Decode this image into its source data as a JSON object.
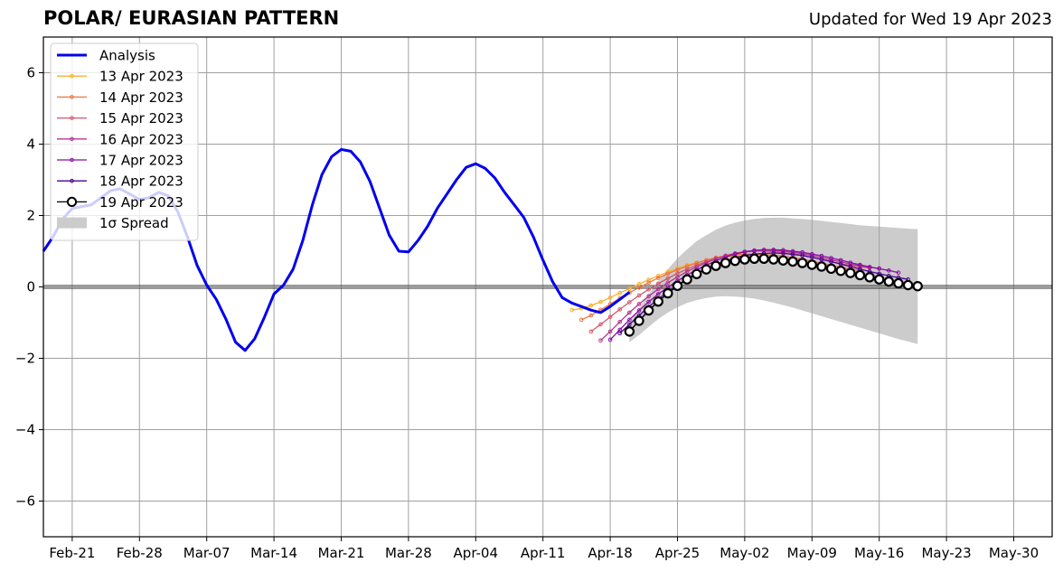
{
  "header": {
    "title": "POLAR/ EURASIAN  PATTERN",
    "updated": "Updated for Wed 19 Apr 2023"
  },
  "chart_data": {
    "type": "line",
    "title": "POLAR/ EURASIAN  PATTERN",
    "subtitle": "Updated for Wed 19 Apr 2023",
    "xlabel": "",
    "ylabel": "",
    "x_range": [
      "2023-02-18",
      "2023-06-03"
    ],
    "ylim": [
      -7,
      7
    ],
    "grid": true,
    "legend_position": "upper-left",
    "x_ticks": [
      {
        "date": "2023-02-21",
        "label": "Feb-21"
      },
      {
        "date": "2023-02-28",
        "label": "Feb-28"
      },
      {
        "date": "2023-03-07",
        "label": "Mar-07"
      },
      {
        "date": "2023-03-14",
        "label": "Mar-14"
      },
      {
        "date": "2023-03-21",
        "label": "Mar-21"
      },
      {
        "date": "2023-03-28",
        "label": "Mar-28"
      },
      {
        "date": "2023-04-04",
        "label": "Apr-04"
      },
      {
        "date": "2023-04-11",
        "label": "Apr-11"
      },
      {
        "date": "2023-04-18",
        "label": "Apr-18"
      },
      {
        "date": "2023-04-25",
        "label": "Apr-25"
      },
      {
        "date": "2023-05-02",
        "label": "May-02"
      },
      {
        "date": "2023-05-09",
        "label": "May-09"
      },
      {
        "date": "2023-05-16",
        "label": "May-16"
      },
      {
        "date": "2023-05-23",
        "label": "May-23"
      },
      {
        "date": "2023-05-30",
        "label": "May-30"
      }
    ],
    "y_ticks": [
      {
        "value": -6,
        "label": "−6"
      },
      {
        "value": -4,
        "label": "−4"
      },
      {
        "value": -2,
        "label": "−2"
      },
      {
        "value": 0,
        "label": "0"
      },
      {
        "value": 2,
        "label": "2"
      },
      {
        "value": 4,
        "label": "4"
      },
      {
        "value": 6,
        "label": "6"
      }
    ],
    "analysis": {
      "name": "Analysis",
      "color": "#0000ee",
      "start_date": "2023-02-18",
      "values": [
        1.0,
        1.4,
        1.9,
        2.2,
        2.25,
        2.3,
        2.5,
        2.7,
        2.75,
        2.6,
        2.45,
        2.5,
        2.65,
        2.55,
        2.1,
        1.4,
        0.6,
        0.05,
        -0.35,
        -0.9,
        -1.55,
        -1.78,
        -1.45,
        -0.85,
        -0.2,
        0.05,
        0.5,
        1.3,
        2.3,
        3.15,
        3.65,
        3.85,
        3.8,
        3.5,
        2.95,
        2.2,
        1.45,
        1.0,
        0.98,
        1.3,
        1.7,
        2.2,
        2.6,
        3.0,
        3.35,
        3.45,
        3.32,
        3.05,
        2.65,
        2.3,
        1.95,
        1.4,
        0.75,
        0.15,
        -0.3,
        -0.45,
        -0.55,
        -0.65,
        -0.72,
        -0.55,
        -0.35,
        -0.15
      ]
    },
    "forecasts": [
      {
        "name": "13 Apr 2023",
        "color": "#f9b02c",
        "start_date": "2023-04-14",
        "values": [
          -0.65,
          -0.6,
          -0.52,
          -0.42,
          -0.3,
          -0.17,
          -0.05,
          0.08,
          0.2,
          0.31,
          0.42,
          0.52,
          0.61,
          0.68,
          0.75,
          0.8,
          0.84,
          0.86,
          0.87,
          0.86,
          0.84,
          0.81,
          0.77,
          0.72,
          0.66,
          0.6,
          0.54,
          0.48,
          0.43,
          0.39
        ]
      },
      {
        "name": "14 Apr 2023",
        "color": "#ed7541",
        "start_date": "2023-04-15",
        "values": [
          -0.92,
          -0.8,
          -0.64,
          -0.48,
          -0.32,
          -0.16,
          -0.02,
          0.12,
          0.25,
          0.37,
          0.48,
          0.58,
          0.67,
          0.75,
          0.82,
          0.87,
          0.9,
          0.92,
          0.92,
          0.91,
          0.89,
          0.86,
          0.82,
          0.77,
          0.72,
          0.66,
          0.6,
          0.55,
          0.5,
          0.46
        ]
      },
      {
        "name": "15 Apr 2023",
        "color": "#d6566c",
        "start_date": "2023-04-16",
        "values": [
          -1.25,
          -1.05,
          -0.84,
          -0.63,
          -0.43,
          -0.24,
          -0.07,
          0.09,
          0.24,
          0.38,
          0.5,
          0.61,
          0.71,
          0.8,
          0.88,
          0.94,
          0.98,
          1.0,
          1.0,
          0.99,
          0.96,
          0.93,
          0.88,
          0.83,
          0.77,
          0.71,
          0.65,
          0.6,
          0.56,
          0.53
        ]
      },
      {
        "name": "16 Apr 2023",
        "color": "#b5348d",
        "start_date": "2023-04-17",
        "values": [
          -1.5,
          -1.25,
          -0.98,
          -0.72,
          -0.48,
          -0.26,
          -0.06,
          0.12,
          0.28,
          0.43,
          0.56,
          0.68,
          0.78,
          0.87,
          0.94,
          0.99,
          1.02,
          1.03,
          1.02,
          1.0,
          0.97,
          0.93,
          0.88,
          0.82,
          0.76,
          0.7,
          0.64,
          0.59,
          0.55,
          0.52
        ]
      },
      {
        "name": "17 Apr 2023",
        "color": "#8a0da3",
        "start_date": "2023-04-18",
        "values": [
          -1.48,
          -1.2,
          -0.92,
          -0.66,
          -0.42,
          -0.2,
          -0.01,
          0.17,
          0.33,
          0.48,
          0.61,
          0.73,
          0.83,
          0.92,
          0.98,
          1.02,
          1.04,
          1.04,
          1.03,
          1.0,
          0.97,
          0.92,
          0.87,
          0.81,
          0.75,
          0.68,
          0.62,
          0.56,
          0.51,
          0.46,
          0.4
        ]
      },
      {
        "name": "18 Apr 2023",
        "color": "#4a0293",
        "start_date": "2023-04-19",
        "values": [
          -1.3,
          -1.05,
          -0.8,
          -0.56,
          -0.34,
          -0.14,
          0.05,
          0.22,
          0.37,
          0.51,
          0.63,
          0.73,
          0.82,
          0.88,
          0.92,
          0.94,
          0.95,
          0.94,
          0.91,
          0.88,
          0.83,
          0.77,
          0.71,
          0.64,
          0.57,
          0.5,
          0.43,
          0.37,
          0.31,
          0.26,
          0.21
        ]
      },
      {
        "name": "19 Apr 2023",
        "color": "#000000",
        "start_date": "2023-04-20",
        "values": [
          -1.25,
          -0.95,
          -0.66,
          -0.41,
          -0.18,
          0.03,
          0.21,
          0.36,
          0.49,
          0.59,
          0.67,
          0.73,
          0.77,
          0.79,
          0.79,
          0.77,
          0.74,
          0.71,
          0.67,
          0.62,
          0.57,
          0.51,
          0.45,
          0.39,
          0.33,
          0.27,
          0.21,
          0.15,
          0.1,
          0.05,
          0.02
        ]
      }
    ],
    "spread": {
      "name": "1σ Spread",
      "color": "#cccccc",
      "start_date": "2023-04-20",
      "upper": [
        -1.0,
        -0.6,
        -0.2,
        0.15,
        0.5,
        0.8,
        1.05,
        1.28,
        1.45,
        1.6,
        1.72,
        1.8,
        1.86,
        1.9,
        1.93,
        1.94,
        1.94,
        1.92,
        1.9,
        1.88,
        1.85,
        1.82,
        1.79,
        1.76,
        1.73,
        1.71,
        1.69,
        1.67,
        1.65,
        1.63,
        1.62
      ],
      "lower": [
        -1.55,
        -1.35,
        -1.12,
        -0.9,
        -0.72,
        -0.57,
        -0.45,
        -0.37,
        -0.31,
        -0.27,
        -0.26,
        -0.27,
        -0.29,
        -0.33,
        -0.38,
        -0.44,
        -0.51,
        -0.58,
        -0.66,
        -0.74,
        -0.82,
        -0.9,
        -0.98,
        -1.06,
        -1.14,
        -1.22,
        -1.3,
        -1.38,
        -1.46,
        -1.53,
        -1.6
      ]
    }
  }
}
